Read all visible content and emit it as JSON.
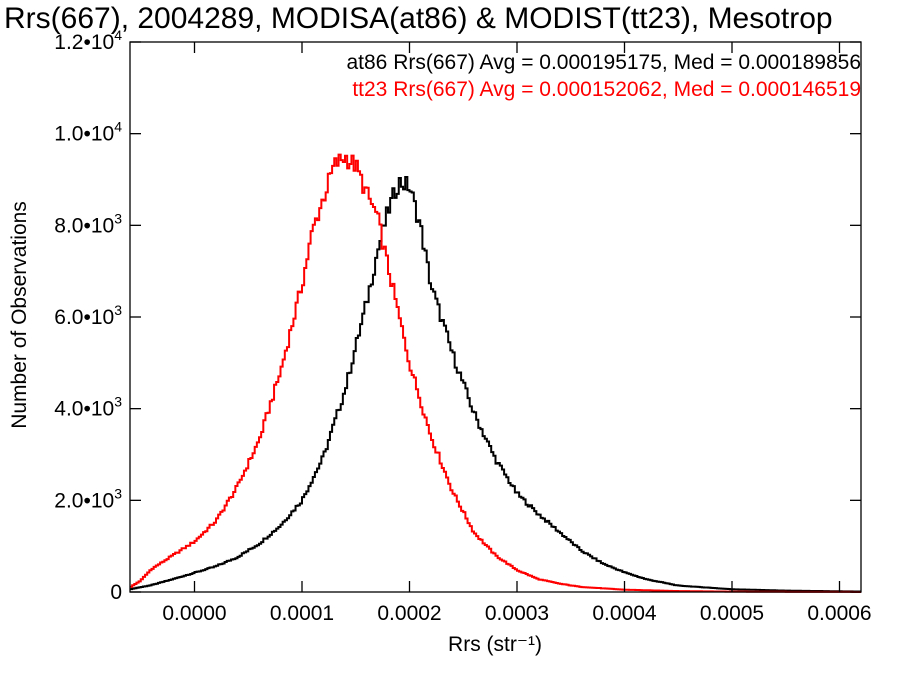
{
  "chart_data": {
    "type": "line",
    "title": "Rrs(667), 2004289, MODISA(at86) & MODIST(tt23), Mesotrop",
    "xlabel": "Rrs (str⁻¹)",
    "ylabel": "Number of Observations",
    "xlim": [
      -6e-05,
      0.00062
    ],
    "ylim": [
      0,
      12000
    ],
    "x_ticks": [
      {
        "value": 0.0,
        "label": "0.0000"
      },
      {
        "value": 0.0001,
        "label": "0.0001"
      },
      {
        "value": 0.0002,
        "label": "0.0002"
      },
      {
        "value": 0.0003,
        "label": "0.0003"
      },
      {
        "value": 0.0004,
        "label": "0.0004"
      },
      {
        "value": 0.0005,
        "label": "0.0005"
      },
      {
        "value": 0.0006,
        "label": "0.0006"
      }
    ],
    "y_ticks": [
      {
        "value": 0,
        "mantissa": "0",
        "exponent": ""
      },
      {
        "value": 2000,
        "mantissa": "2.0•10",
        "exponent": "3"
      },
      {
        "value": 4000,
        "mantissa": "4.0•10",
        "exponent": "3"
      },
      {
        "value": 6000,
        "mantissa": "6.0•10",
        "exponent": "3"
      },
      {
        "value": 8000,
        "mantissa": "8.0•10",
        "exponent": "3"
      },
      {
        "value": 10000,
        "mantissa": "1.0•10",
        "exponent": "4"
      },
      {
        "value": 12000,
        "mantissa": "1.2•10",
        "exponent": "4"
      }
    ],
    "annotations": [
      {
        "text": "at86 Rrs(667) Avg = 0.000195175, Med = 0.000189856",
        "color": "#000000"
      },
      {
        "text": "tt23 Rrs(667) Avg = 0.000152062, Med = 0.000146519",
        "color": "#ff0000"
      }
    ],
    "series": [
      {
        "color": "#000000",
        "step": "histogram",
        "x": [
          -6e-05,
          -4e-05,
          -2e-05,
          0.0,
          2e-05,
          4e-05,
          6e-05,
          8e-05,
          0.0001,
          0.00012,
          0.00014,
          0.00016,
          0.00017,
          0.00018,
          0.00019,
          0.0002,
          0.00021,
          0.00022,
          0.00024,
          0.00026,
          0.00028,
          0.0003,
          0.00032,
          0.00034,
          0.00036,
          0.00038,
          0.0004,
          0.00042,
          0.00045,
          0.0005,
          0.00055,
          0.0006,
          0.00062
        ],
        "values": [
          60,
          150,
          280,
          420,
          560,
          760,
          1050,
          1450,
          2000,
          2950,
          4400,
          6300,
          7400,
          8300,
          8950,
          8850,
          8000,
          6700,
          5200,
          3900,
          2900,
          2150,
          1700,
          1300,
          900,
          620,
          430,
          280,
          140,
          60,
          30,
          15,
          10
        ]
      },
      {
        "color": "#ff0000",
        "step": "histogram",
        "x": [
          -6e-05,
          -5e-05,
          -4e-05,
          -2e-05,
          0.0,
          2e-05,
          4e-05,
          6e-05,
          8e-05,
          0.0001,
          0.00011,
          0.00012,
          0.00013,
          0.00014,
          0.00015,
          0.00016,
          0.00017,
          0.00018,
          0.0002,
          0.00022,
          0.00024,
          0.00026,
          0.00028,
          0.0003,
          0.00032,
          0.00034,
          0.00036,
          0.0004,
          0.00045,
          0.0005,
          0.00055,
          0.0006,
          0.00062
        ],
        "values": [
          100,
          250,
          500,
          800,
          1100,
          1550,
          2300,
          3300,
          4800,
          6700,
          7900,
          8600,
          9300,
          9500,
          9300,
          8700,
          8200,
          7100,
          5000,
          3400,
          2200,
          1300,
          800,
          480,
          280,
          180,
          110,
          50,
          20,
          8,
          4,
          2,
          1
        ]
      }
    ]
  }
}
